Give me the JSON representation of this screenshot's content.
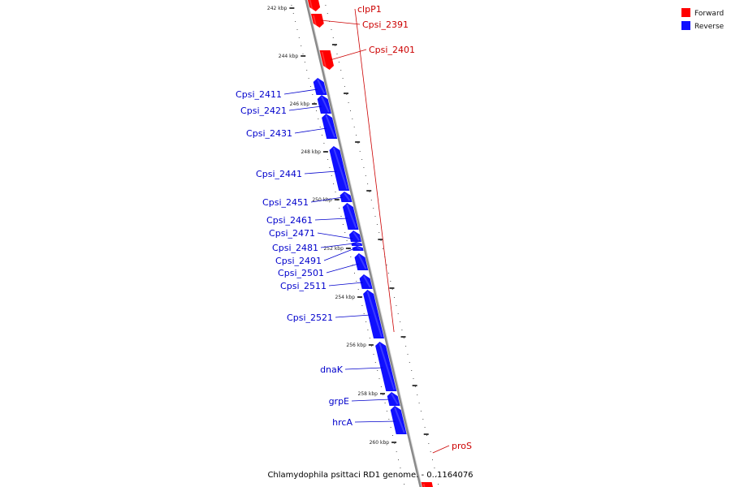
{
  "colors": {
    "forward": "#ff0000",
    "reverse": "#1010ff",
    "backbone": "#8a8a8a",
    "label_forward": "#cc0000",
    "label_reverse": "#0000cc"
  },
  "legend": [
    {
      "label": "Forward",
      "strand": "forward"
    },
    {
      "label": "Reverse",
      "strand": "reverse"
    }
  ],
  "caption": "Chlamydophila psittaci RD1 genome. - 0..1164076",
  "ticks": [
    "242 kbp",
    "244 kbp",
    "246 kbp",
    "248 kbp",
    "250 kbp",
    "252 kbp",
    "254 kbp",
    "256 kbp",
    "258 kbp",
    "260 kbp"
  ],
  "features": [
    {
      "name": "clpP1",
      "strand": "forward"
    },
    {
      "name": "Cpsi_2391",
      "strand": "forward"
    },
    {
      "name": "Cpsi_2401",
      "strand": "forward"
    },
    {
      "name": "Cpsi_2411",
      "strand": "reverse"
    },
    {
      "name": "Cpsi_2421",
      "strand": "reverse"
    },
    {
      "name": "Cpsi_2431",
      "strand": "reverse"
    },
    {
      "name": "Cpsi_2441",
      "strand": "reverse"
    },
    {
      "name": "Cpsi_2451",
      "strand": "reverse"
    },
    {
      "name": "Cpsi_2461",
      "strand": "reverse"
    },
    {
      "name": "Cpsi_2471",
      "strand": "reverse"
    },
    {
      "name": "Cpsi_2481",
      "strand": "reverse"
    },
    {
      "name": "Cpsi_2491",
      "strand": "reverse"
    },
    {
      "name": "Cpsi_2501",
      "strand": "reverse"
    },
    {
      "name": "Cpsi_2511",
      "strand": "reverse"
    },
    {
      "name": "Cpsi_2521",
      "strand": "reverse"
    },
    {
      "name": "dnaK",
      "strand": "reverse"
    },
    {
      "name": "grpE",
      "strand": "reverse"
    },
    {
      "name": "hrcA",
      "strand": "reverse"
    },
    {
      "name": "proS",
      "strand": "forward"
    }
  ]
}
